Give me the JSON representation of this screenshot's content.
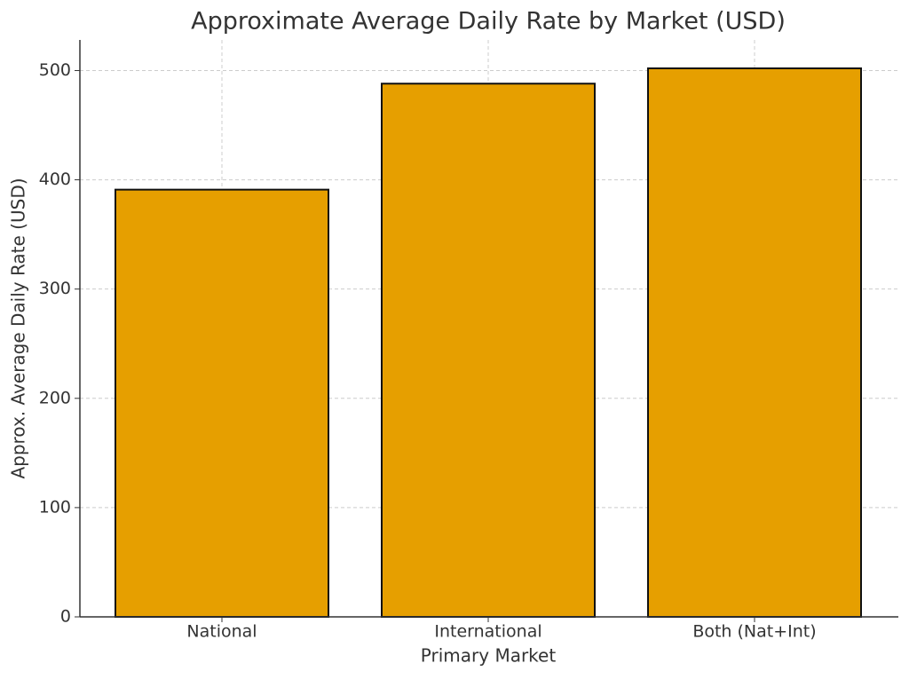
{
  "chart_data": {
    "type": "bar",
    "title": "Approximate Average Daily Rate by Market (USD)",
    "x_label": "Primary Market",
    "y_label": "Approx. Average Daily Rate (USD)",
    "categories": [
      "National",
      "International",
      "Both (Nat+Int)"
    ],
    "values": [
      391,
      488,
      502
    ],
    "color": "#e69f00",
    "ylim": [
      0,
      528
    ],
    "yticks": [
      0,
      100,
      200,
      300,
      400,
      500
    ],
    "grid": true
  }
}
